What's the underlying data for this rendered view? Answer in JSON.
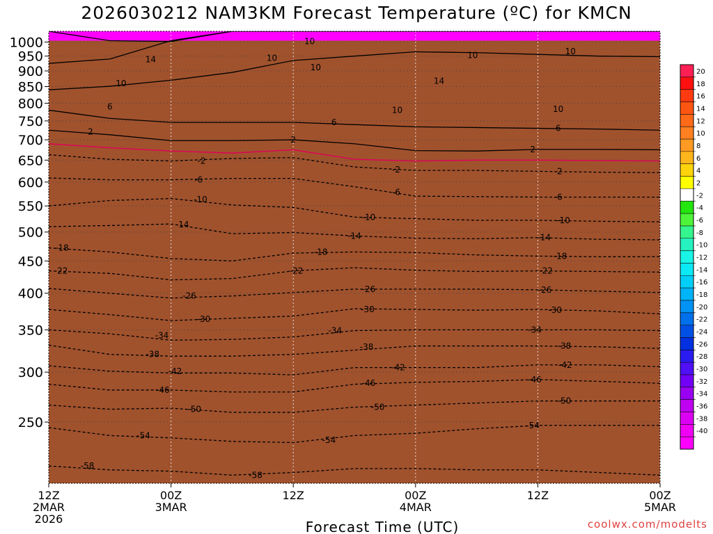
{
  "chart_data": {
    "type": "heatmap",
    "title": "2026030212 NAM3KM Forecast Temperature (ºC) for KMCN",
    "xlabel": "Forecast Time (UTC)",
    "ylabel": "",
    "credit": "coolwx.com/modelts",
    "x_unit": "forecast hour",
    "xlim": [
      0,
      60
    ],
    "y_unit": "hPa",
    "ylim": [
      1040,
      200
    ],
    "x_ticks": [
      {
        "x": 0,
        "label": [
          "12Z",
          "2MAR",
          "2026"
        ]
      },
      {
        "x": 12,
        "label": [
          "00Z",
          "3MAR"
        ]
      },
      {
        "x": 24,
        "label": [
          "12Z"
        ]
      },
      {
        "x": 36,
        "label": [
          "00Z",
          "4MAR"
        ]
      },
      {
        "x": 48,
        "label": [
          "12Z"
        ]
      },
      {
        "x": 60,
        "label": [
          "00Z",
          "5MAR"
        ]
      }
    ],
    "y_ticks": [
      250,
      300,
      350,
      400,
      450,
      500,
      550,
      600,
      650,
      700,
      750,
      800,
      850,
      900,
      950,
      1000
    ],
    "x_samples": [
      0,
      6,
      12,
      18,
      24,
      30,
      36,
      42,
      48,
      54,
      60
    ],
    "isotherm_pressures": [
      {
        "t": -58,
        "p": [
          213,
          210,
          209,
          206,
          208,
          211,
          211,
          210,
          210,
          208,
          206
        ]
      },
      {
        "t": -54,
        "p": [
          245,
          238,
          236,
          233,
          232,
          238,
          240,
          244,
          247,
          247,
          247
        ]
      },
      {
        "t": -50,
        "p": [
          266,
          262,
          263,
          259,
          259,
          264,
          266,
          268,
          270,
          270,
          270
        ]
      },
      {
        "t": -46,
        "p": [
          287,
          281,
          281,
          279,
          279,
          287,
          289,
          290,
          292,
          290,
          288
        ]
      },
      {
        "t": -42,
        "p": [
          307,
          301,
          299,
          299,
          297,
          305,
          305,
          305,
          308,
          308,
          306
        ]
      },
      {
        "t": -38,
        "p": [
          331,
          320,
          318,
          318,
          320,
          325,
          330,
          330,
          330,
          329,
          327
        ]
      },
      {
        "t": -34,
        "p": [
          350,
          345,
          337,
          338,
          341,
          349,
          350,
          350,
          350,
          350,
          349
        ]
      },
      {
        "t": -30,
        "p": [
          377,
          370,
          362,
          365,
          368,
          378,
          377,
          376,
          377,
          375,
          371
        ]
      },
      {
        "t": -26,
        "p": [
          407,
          400,
          393,
          396,
          401,
          406,
          406,
          406,
          405,
          403,
          401
        ]
      },
      {
        "t": -22,
        "p": [
          434,
          430,
          420,
          422,
          434,
          439,
          435,
          433,
          434,
          433,
          432
        ]
      },
      {
        "t": -18,
        "p": [
          472,
          465,
          454,
          450,
          463,
          465,
          464,
          460,
          458,
          457,
          457
        ]
      },
      {
        "t": -14,
        "p": [
          510,
          512,
          515,
          497,
          499,
          493,
          489,
          488,
          490,
          487,
          486
        ]
      },
      {
        "t": -10,
        "p": [
          550,
          561,
          565,
          552,
          547,
          528,
          525,
          522,
          522,
          520,
          519
        ]
      },
      {
        "t": -6,
        "p": [
          609,
          605,
          605,
          608,
          608,
          590,
          570,
          569,
          568,
          568,
          568
        ]
      },
      {
        "t": -2,
        "p": [
          663,
          652,
          648,
          654,
          656,
          634,
          626,
          626,
          624,
          622,
          621
        ]
      },
      {
        "t": 0,
        "p": [
          690,
          680,
          672,
          667,
          675,
          652,
          648,
          650,
          650,
          649,
          648
        ]
      },
      {
        "t": 2,
        "p": [
          725,
          713,
          698,
          698,
          700,
          690,
          673,
          672,
          676,
          676,
          675
        ]
      },
      {
        "t": 6,
        "p": [
          780,
          757,
          746,
          746,
          746,
          740,
          734,
          732,
          730,
          728,
          725
        ]
      },
      {
        "t": 10,
        "p": [
          840,
          851,
          870,
          895,
          935,
          950,
          965,
          962,
          956,
          950,
          948
        ]
      },
      {
        "t": 14,
        "p": [
          925,
          940,
          1005,
          1040,
          1040,
          1040,
          1040,
          1040,
          1040,
          1040,
          1040
        ]
      },
      {
        "t": 18,
        "p": [
          1040,
          1005,
          1002,
          1040,
          1040,
          1040,
          1040,
          1040,
          1040,
          1040,
          1040
        ]
      }
    ],
    "contour_labels": [
      {
        "t": -58,
        "label": "-58",
        "x": 3.8,
        "p": 213
      },
      {
        "t": -58,
        "label": "-58",
        "x": 20.3,
        "p": 206
      },
      {
        "t": -54,
        "label": "-54",
        "x": 9.3,
        "p": 238
      },
      {
        "t": -54,
        "label": "-54",
        "x": 27.5,
        "p": 234
      },
      {
        "t": -54,
        "label": "-54",
        "x": 47.5,
        "p": 247
      },
      {
        "t": -50,
        "label": "-50",
        "x": 14.3,
        "p": 262
      },
      {
        "t": -50,
        "label": "-50",
        "x": 32.3,
        "p": 264
      },
      {
        "t": -50,
        "label": "-50",
        "x": 50.6,
        "p": 270
      },
      {
        "t": -46,
        "label": "-46",
        "x": 11.2,
        "p": 281
      },
      {
        "t": -46,
        "label": "-46",
        "x": 31.4,
        "p": 288
      },
      {
        "t": -46,
        "label": "-46",
        "x": 47.7,
        "p": 292
      },
      {
        "t": -42,
        "label": "-42",
        "x": 12.4,
        "p": 301
      },
      {
        "t": -42,
        "label": "-42",
        "x": 34.3,
        "p": 305
      },
      {
        "t": -42,
        "label": "-42",
        "x": 50.7,
        "p": 308
      },
      {
        "t": -38,
        "label": "-38",
        "x": 10.2,
        "p": 320
      },
      {
        "t": -38,
        "label": "-38",
        "x": 31.2,
        "p": 329
      },
      {
        "t": -38,
        "label": "-38",
        "x": 50.6,
        "p": 330
      },
      {
        "t": -34,
        "label": "-34",
        "x": 11.1,
        "p": 343
      },
      {
        "t": -34,
        "label": "-34",
        "x": 28.1,
        "p": 349
      },
      {
        "t": -34,
        "label": "-34",
        "x": 47.7,
        "p": 350
      },
      {
        "t": -30,
        "label": "-30",
        "x": 15.2,
        "p": 364
      },
      {
        "t": -30,
        "label": "-30",
        "x": 31.3,
        "p": 377
      },
      {
        "t": -30,
        "label": "-30",
        "x": 49.7,
        "p": 376
      },
      {
        "t": -26,
        "label": "-26",
        "x": 13.8,
        "p": 396
      },
      {
        "t": -26,
        "label": "-26",
        "x": 31.4,
        "p": 406
      },
      {
        "t": -26,
        "label": "-26",
        "x": 48.7,
        "p": 405
      },
      {
        "t": -22,
        "label": "-22",
        "x": 1.2,
        "p": 434
      },
      {
        "t": -22,
        "label": "-22",
        "x": 24.3,
        "p": 434
      },
      {
        "t": -22,
        "label": "-22",
        "x": 48.8,
        "p": 434
      },
      {
        "t": -18,
        "label": "-18",
        "x": 1.3,
        "p": 472
      },
      {
        "t": -18,
        "label": "-18",
        "x": 26.7,
        "p": 465
      },
      {
        "t": -18,
        "label": "-18",
        "x": 50.2,
        "p": 458
      },
      {
        "t": -14,
        "label": "-14",
        "x": 13.1,
        "p": 514
      },
      {
        "t": -14,
        "label": "-14",
        "x": 30.0,
        "p": 493
      },
      {
        "t": -14,
        "label": "-14",
        "x": 48.6,
        "p": 490
      },
      {
        "t": -10,
        "label": "-10",
        "x": 14.9,
        "p": 563
      },
      {
        "t": -10,
        "label": "-10",
        "x": 31.4,
        "p": 528
      },
      {
        "t": -10,
        "label": "-10",
        "x": 50.5,
        "p": 522
      },
      {
        "t": -6,
        "label": "-6",
        "x": 14.7,
        "p": 605
      },
      {
        "t": -6,
        "label": "-6",
        "x": 34.1,
        "p": 578
      },
      {
        "t": -6,
        "label": "-6",
        "x": 50.0,
        "p": 568
      },
      {
        "t": -2,
        "label": "-2",
        "x": 15.0,
        "p": 648
      },
      {
        "t": -2,
        "label": "-2",
        "x": 34.1,
        "p": 628
      },
      {
        "t": -2,
        "label": "-2",
        "x": 50.0,
        "p": 624
      },
      {
        "t": 2,
        "label": "2",
        "x": 4.1,
        "p": 721
      },
      {
        "t": 2,
        "label": "2",
        "x": 24.0,
        "p": 700
      },
      {
        "t": 2,
        "label": "2",
        "x": 47.5,
        "p": 676
      },
      {
        "t": 6,
        "label": "6",
        "x": 6.0,
        "p": 790
      },
      {
        "t": 6,
        "label": "6",
        "x": 28.0,
        "p": 746
      },
      {
        "t": 6,
        "label": "6",
        "x": 50.0,
        "p": 730
      },
      {
        "t": 10,
        "label": "10",
        "x": 7.1,
        "p": 860
      },
      {
        "t": 10,
        "label": "10",
        "x": 21.9,
        "p": 943
      },
      {
        "t": 10,
        "label": "10",
        "x": 25.6,
        "p": 1002
      },
      {
        "t": 10,
        "label": "10",
        "x": 34.2,
        "p": 780
      },
      {
        "t": 10,
        "label": "10",
        "x": 26.2,
        "p": 911
      },
      {
        "t": 10,
        "label": "10",
        "x": 50.0,
        "p": 783
      },
      {
        "t": 10,
        "label": "10",
        "x": 41.6,
        "p": 953
      },
      {
        "t": 10,
        "label": "10",
        "x": 51.2,
        "p": 966
      },
      {
        "t": 14,
        "label": "14",
        "x": 10.0,
        "p": 938
      },
      {
        "t": 14,
        "label": "14",
        "x": 38.3,
        "p": 868
      }
    ]
  },
  "color_scale": {
    "levels": [
      "20",
      "18",
      "16",
      "14",
      "12",
      "10",
      "8",
      "6",
      "4",
      "2",
      "-2",
      "-4",
      "-6",
      "-8",
      "-10",
      "-12",
      "-14",
      "-16",
      "-18",
      "-20",
      "-22",
      "-24",
      "-26",
      "-28",
      "-30",
      "-32",
      "-34",
      "-36",
      "-38",
      "-40"
    ],
    "bands": [
      {
        "t": 20,
        "color": "#ff1f55"
      },
      {
        "t": 18,
        "color": "#ff1010"
      },
      {
        "t": 16,
        "color": "#ff3a10"
      },
      {
        "t": 14,
        "color": "#ff5512"
      },
      {
        "t": 12,
        "color": "#ff6a18"
      },
      {
        "t": 10,
        "color": "#ff8020"
      },
      {
        "t": 8,
        "color": "#ff9a22"
      },
      {
        "t": 6,
        "color": "#ffb61c"
      },
      {
        "t": 4,
        "color": "#ffd40c"
      },
      {
        "t": 2,
        "color": "#ffff00"
      },
      {
        "t": 0,
        "color": "#ffffff"
      },
      {
        "t": -2,
        "color": "#22e60e"
      },
      {
        "t": -4,
        "color": "#4ef43a"
      },
      {
        "t": -6,
        "color": "#35f68e"
      },
      {
        "t": -8,
        "color": "#25f2bf"
      },
      {
        "t": -10,
        "color": "#19f4e6"
      },
      {
        "t": -12,
        "color": "#0ce8f4"
      },
      {
        "t": -14,
        "color": "#00d0f8"
      },
      {
        "t": -16,
        "color": "#00b4f8"
      },
      {
        "t": -18,
        "color": "#0092f4"
      },
      {
        "t": -20,
        "color": "#0070ec"
      },
      {
        "t": -22,
        "color": "#0050e6"
      },
      {
        "t": -24,
        "color": "#0030e0"
      },
      {
        "t": -26,
        "color": "#2a1cf0"
      },
      {
        "t": -28,
        "color": "#4f10f6"
      },
      {
        "t": -30,
        "color": "#7200f6"
      },
      {
        "t": -32,
        "color": "#9a00f2"
      },
      {
        "t": -34,
        "color": "#c000f0"
      },
      {
        "t": -36,
        "color": "#dc00f2"
      },
      {
        "t": -38,
        "color": "#f000f4"
      },
      {
        "t": -40,
        "color": "#ff00ff"
      }
    ],
    "ground_color": "#a0522d",
    "freezing_line_color": "#e0005a"
  }
}
